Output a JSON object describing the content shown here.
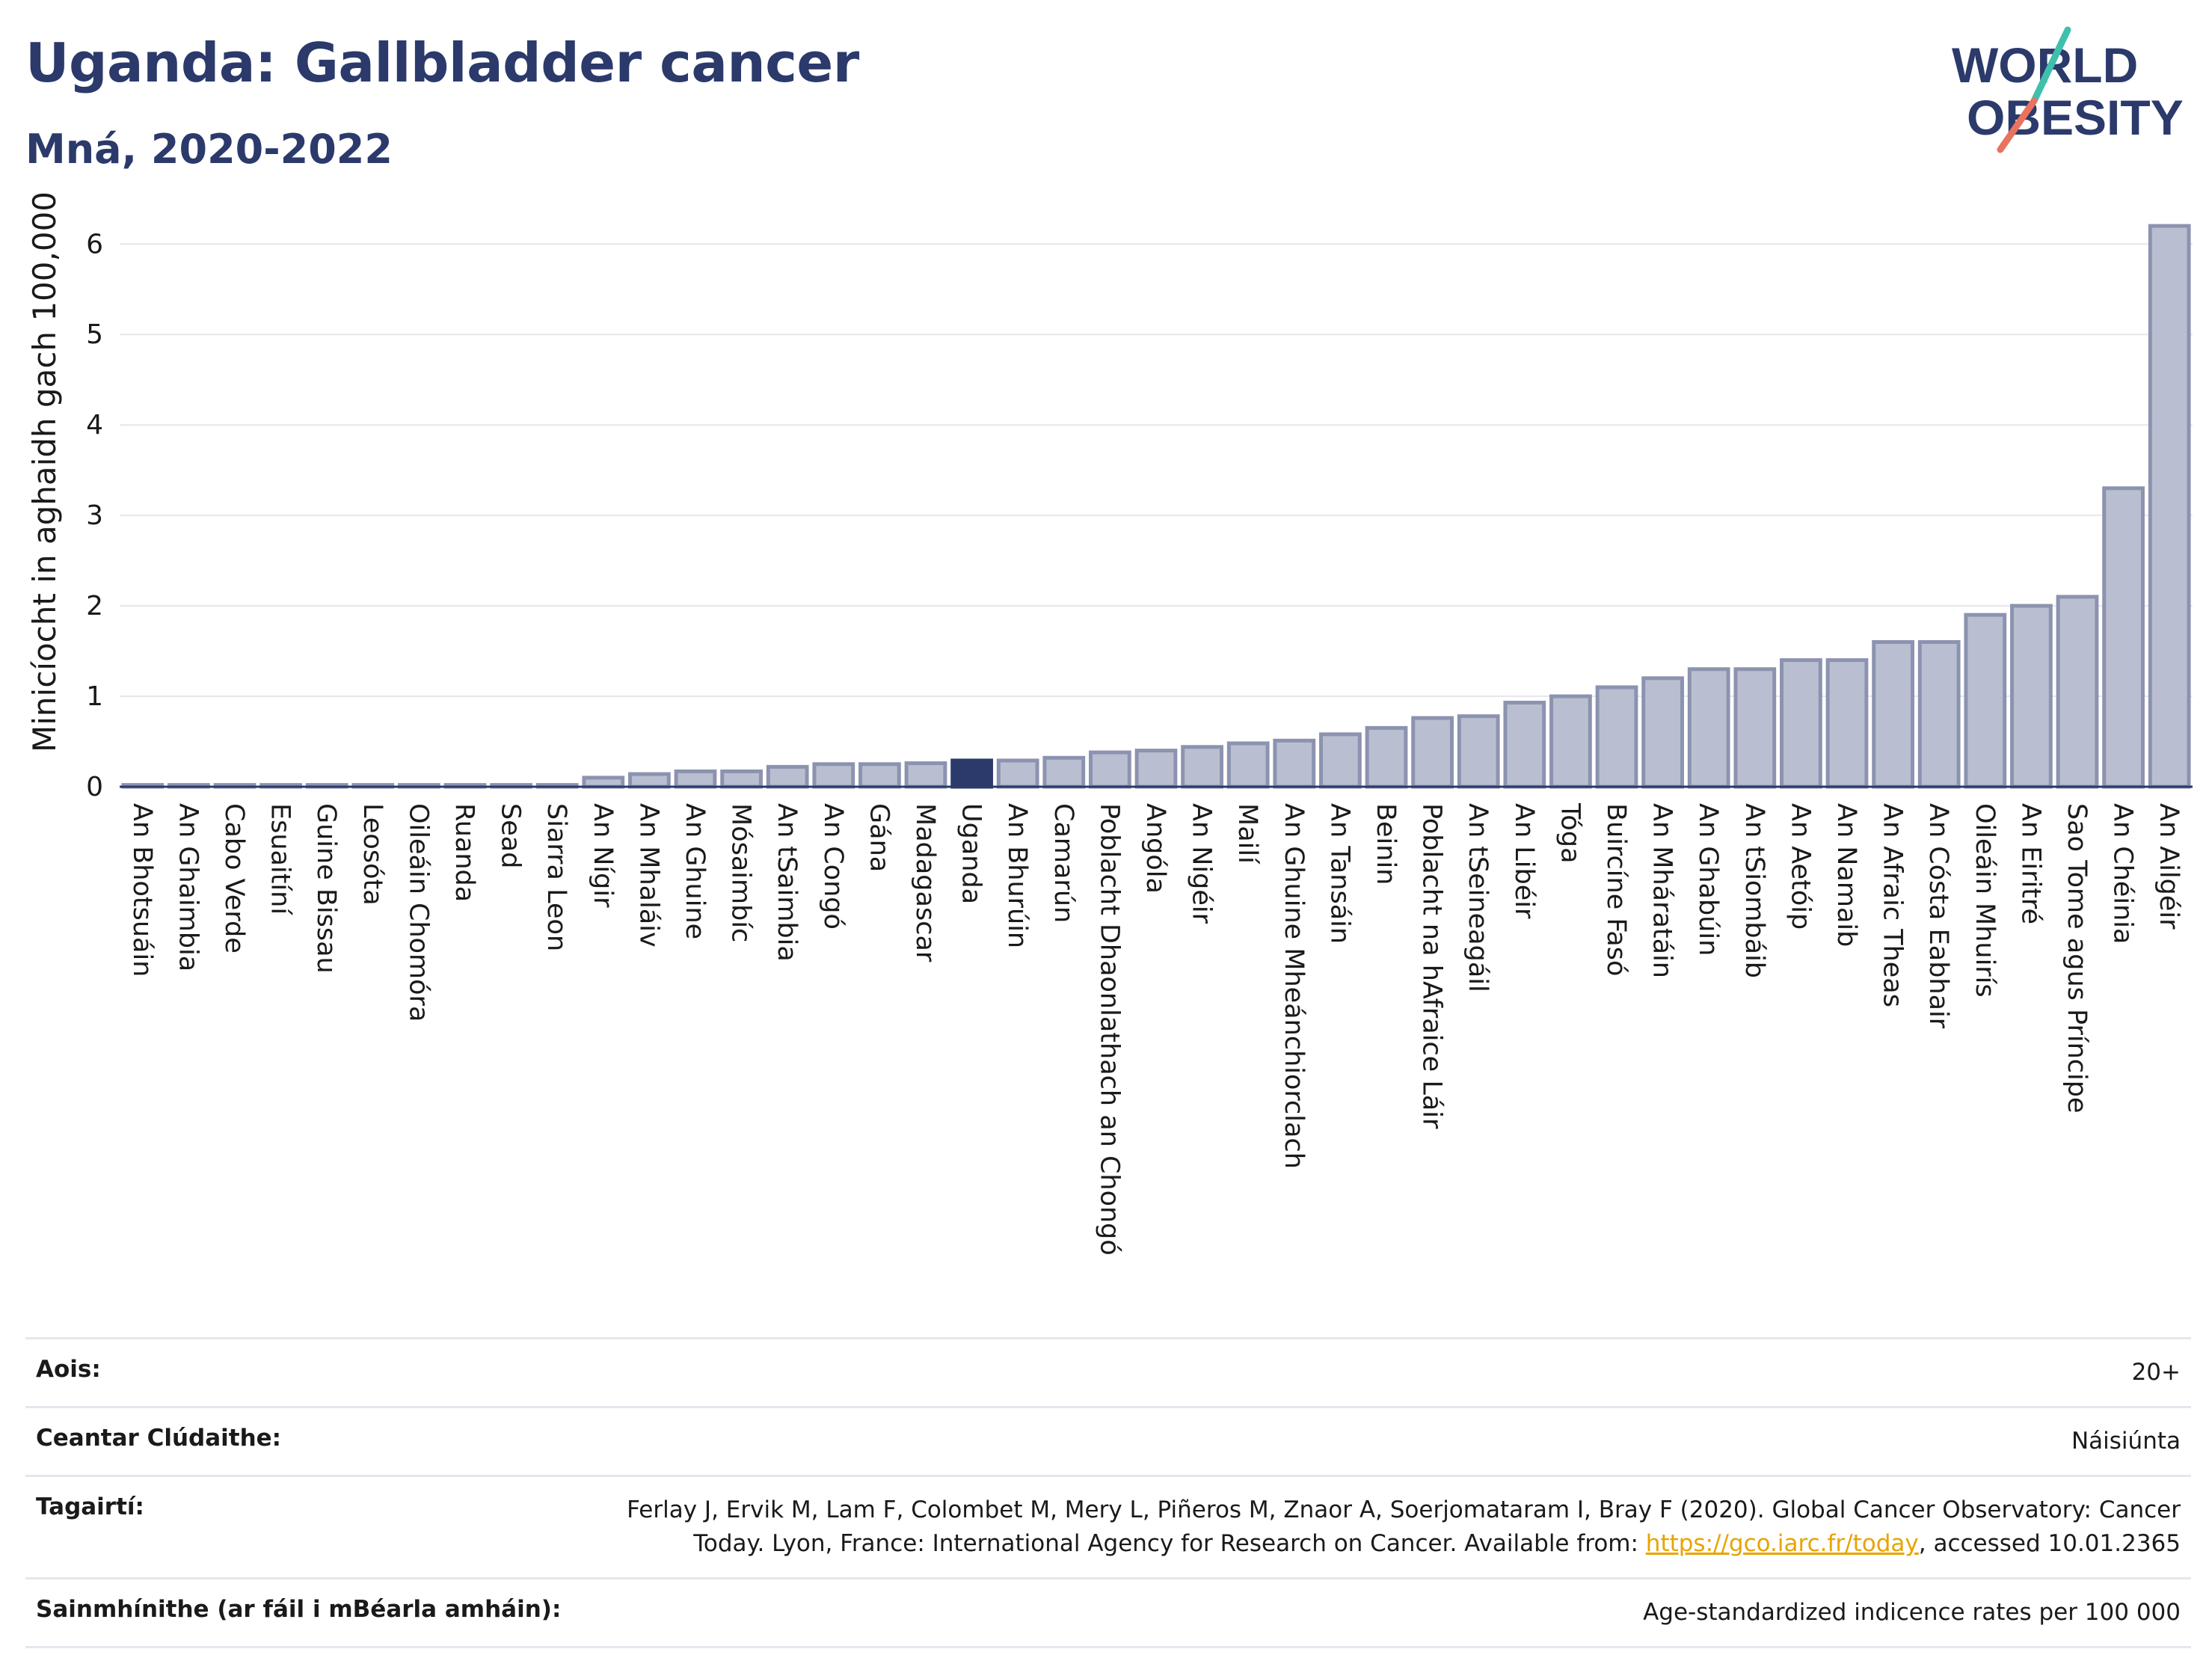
{
  "header": {
    "title": "Uganda: Gallbladder cancer",
    "subtitle": "Mná, 2020-2022",
    "logo_line1": "WORLD",
    "logo_line2": "OBESITY"
  },
  "colors": {
    "title": "#2b3a6b",
    "bar_fill": "#b9bfd0",
    "bar_stroke": "#8c93b0",
    "highlight": "#2b3a6b",
    "grid": "#e6e6ee",
    "link": "#e8a400",
    "logo_teal": "#3fbfad",
    "logo_coral": "#e8735f"
  },
  "chart_data": {
    "type": "bar",
    "ylabel": "Minicíocht in aghaidh gach 100,000",
    "ylim": [
      0,
      6.3
    ],
    "yticks": [
      0,
      1,
      2,
      3,
      4,
      5,
      6
    ],
    "grid": true,
    "highlight": "Uganda",
    "categories": [
      "An Bhotsuáin",
      "An Ghaimbia",
      "Cabo Verde",
      "Esuaitíní",
      "Guine Bissau",
      "Leosóta",
      "Oileáin Chomóra",
      "Ruanda",
      "Sead",
      "Siarra Leon",
      "An Nígir",
      "An Mhaláiv",
      "An Ghuine",
      "Mósaimbíc",
      "An tSaimbia",
      "An Congó",
      "Gána",
      "Madagascar",
      "Uganda",
      "An Bhurúin",
      "Camarún",
      "Poblacht Dhaonlathach an Chongó",
      "Angóla",
      "An Nigéir",
      "Mailí",
      "An Ghuine Mheánchiorclach",
      "An Tansáin",
      "Beinin",
      "Poblacht na hAfraice Láir",
      "An tSeineagáil",
      "An Libéir",
      "Tóga",
      "Buircíne Fasó",
      "An Mháratáin",
      "An Ghabúin",
      "An tSiombáib",
      "An Aetóip",
      "An Namaib",
      "An Afraic Theas",
      "An Cósta Eabhair",
      "Oileáin Mhuirís",
      "An Eiritré",
      "Sao Tome agus Príncipe",
      "An Chéinia",
      "An Ailgéir"
    ],
    "values": [
      0.02,
      0.02,
      0.02,
      0.02,
      0.02,
      0.02,
      0.02,
      0.02,
      0.02,
      0.02,
      0.1,
      0.14,
      0.17,
      0.17,
      0.22,
      0.25,
      0.25,
      0.26,
      0.29,
      0.29,
      0.32,
      0.38,
      0.4,
      0.44,
      0.48,
      0.51,
      0.58,
      0.65,
      0.76,
      0.78,
      0.93,
      1.0,
      1.1,
      1.2,
      1.3,
      1.3,
      1.4,
      1.4,
      1.6,
      1.6,
      1.9,
      2.0,
      2.1,
      3.3,
      6.2
    ]
  },
  "info": [
    {
      "key": "Aois:",
      "value": "20+"
    },
    {
      "key": "Ceantar Clúdaithe:",
      "value": "Náisiúnta"
    },
    {
      "key": "Tagairtí:",
      "value_before": "Ferlay J, Ervik M, Lam F, Colombet M, Mery L, Piñeros M, Znaor A, Soerjomataram I, Bray F (2020). Global Cancer Observatory: Cancer Today. Lyon, France: International Agency for Research on Cancer. Available from: ",
      "link": "https://gco.iarc.fr/today",
      "value_after": ", accessed 10.01.2365"
    },
    {
      "key": "Sainmhínithe (ar fáil i mBéarla amháin):",
      "value": "Age-standardized indicence rates per 100 000"
    }
  ]
}
